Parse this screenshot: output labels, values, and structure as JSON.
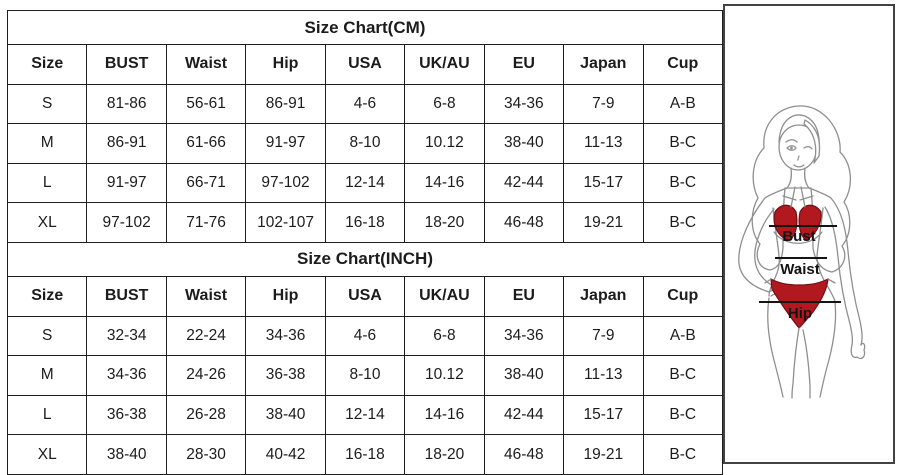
{
  "chart_data": [
    {
      "type": "table",
      "title": "Size Chart(CM)",
      "columns": [
        "Size",
        "BUST",
        "Waist",
        "Hip",
        "USA",
        "UK/AU",
        "EU",
        "Japan",
        "Cup"
      ],
      "rows": [
        [
          "S",
          "81-86",
          "56-61",
          "86-91",
          "4-6",
          "6-8",
          "34-36",
          "7-9",
          "A-B"
        ],
        [
          "M",
          "86-91",
          "61-66",
          "91-97",
          "8-10",
          "10.12",
          "38-40",
          "11-13",
          "B-C"
        ],
        [
          "L",
          "91-97",
          "66-71",
          "97-102",
          "12-14",
          "14-16",
          "42-44",
          "15-17",
          "B-C"
        ],
        [
          "XL",
          "97-102",
          "71-76",
          "102-107",
          "16-18",
          "18-20",
          "46-48",
          "19-21",
          "B-C"
        ]
      ]
    },
    {
      "type": "table",
      "title": "Size Chart(INCH)",
      "columns": [
        "Size",
        "BUST",
        "Waist",
        "Hip",
        "USA",
        "UK/AU",
        "EU",
        "Japan",
        "Cup"
      ],
      "rows": [
        [
          "S",
          "32-34",
          "22-24",
          "34-36",
          "4-6",
          "6-8",
          "34-36",
          "7-9",
          "A-B"
        ],
        [
          "M",
          "34-36",
          "24-26",
          "36-38",
          "8-10",
          "10.12",
          "38-40",
          "11-13",
          "B-C"
        ],
        [
          "L",
          "36-38",
          "26-28",
          "38-40",
          "12-14",
          "14-16",
          "42-44",
          "15-17",
          "B-C"
        ],
        [
          "XL",
          "38-40",
          "28-30",
          "40-42",
          "16-18",
          "18-20",
          "46-48",
          "19-21",
          "B-C"
        ]
      ]
    }
  ],
  "figure": {
    "labels": {
      "bust": "Bust",
      "waist": "Waist",
      "hip": "Hip"
    },
    "colors": {
      "bikini_red": "#b1191f",
      "bikini_outline": "#701015",
      "sketch_outline": "#8f8f8f",
      "measure_line": "#141414",
      "table_border": "#1f1f1f"
    }
  }
}
